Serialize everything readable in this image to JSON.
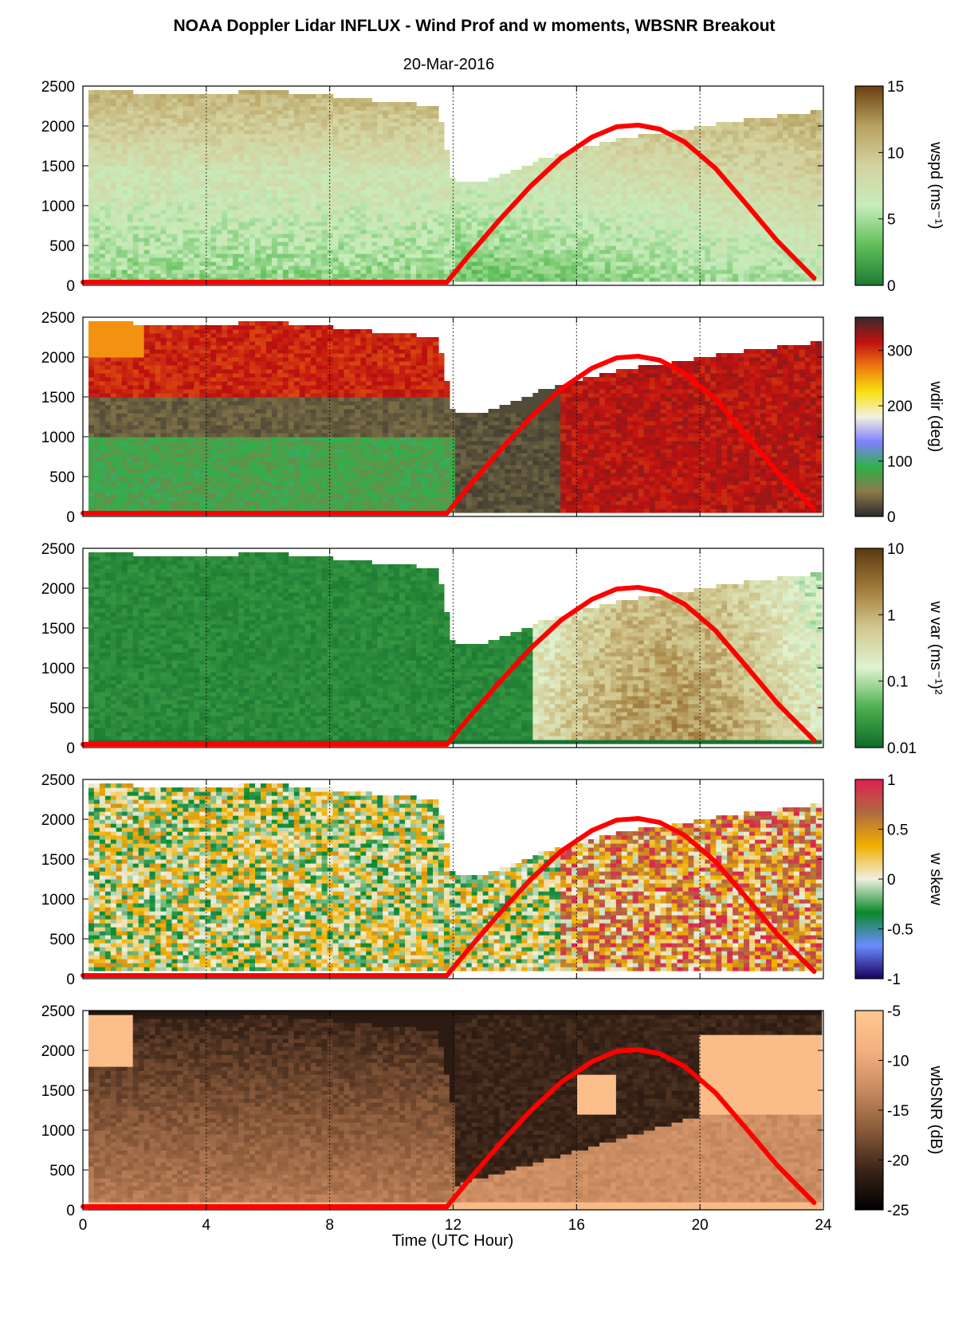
{
  "figure": {
    "title": "NOAA Doppler Lidar INFLUX - Wind Prof and w moments, WBSNR Breakout",
    "subtitle": "20-Mar-2016",
    "xlabel": "Time (UTC Hour)"
  },
  "chart_data": [
    {
      "type": "heatmap",
      "variable": "wspd",
      "colorbar_label": "wspd (ms⁻¹)",
      "colorbar_ticks": [
        "0",
        "5",
        "10",
        "15"
      ],
      "colorbar_range": [
        0,
        15
      ],
      "colorbar_colors": [
        "#1f7a34",
        "#5fbf58",
        "#c8ecbc",
        "#d4d2a0",
        "#b8a260",
        "#6b3f10"
      ],
      "x": {
        "label": "",
        "range": [
          0,
          24
        ],
        "ticks": [
          0,
          4,
          8,
          12,
          16,
          20,
          24
        ]
      },
      "y": {
        "range": [
          0,
          2500
        ],
        "ticks": [
          "0",
          "500",
          "1000",
          "1500",
          "2000",
          "2500"
        ]
      },
      "gridlines_x": [
        4,
        8,
        12,
        16,
        20
      ]
    },
    {
      "type": "heatmap",
      "variable": "wdir",
      "colorbar_label": "wdir (deg)",
      "colorbar_ticks": [
        "0",
        "100",
        "200",
        "300"
      ],
      "colorbar_range": [
        0,
        360
      ],
      "colorbar_colors": [
        "#2b2b2b",
        "#8a7a4a",
        "#2fb04a",
        "#8080ff",
        "#f2f2e0",
        "#f8e010",
        "#f07a10",
        "#c01010",
        "#3a2a2a"
      ],
      "x": {
        "label": "",
        "range": [
          0,
          24
        ],
        "ticks": [
          0,
          4,
          8,
          12,
          16,
          20,
          24
        ]
      },
      "y": {
        "range": [
          0,
          2500
        ],
        "ticks": [
          "0",
          "500",
          "1000",
          "1500",
          "2000",
          "2500"
        ]
      },
      "gridlines_x": [
        4,
        8,
        12,
        16,
        20
      ]
    },
    {
      "type": "heatmap",
      "variable": "w var",
      "colorbar_label": "w var (ms⁻¹)²",
      "colorbar_ticks": [
        "0.01",
        "0.1",
        "1",
        "10"
      ],
      "colorbar_scale": "log",
      "colorbar_colors": [
        "#0f6b2a",
        "#4caf50",
        "#dff3d0",
        "#d2c890",
        "#a07a3a",
        "#5a3a10"
      ],
      "x": {
        "label": "",
        "range": [
          0,
          24
        ],
        "ticks": [
          0,
          4,
          8,
          12,
          16,
          20,
          24
        ]
      },
      "y": {
        "range": [
          0,
          2500
        ],
        "ticks": [
          "0",
          "500",
          "1000",
          "1500",
          "2000",
          "2500"
        ]
      },
      "gridlines_x": [
        4,
        8,
        12,
        16,
        20
      ]
    },
    {
      "type": "heatmap",
      "variable": "w skew",
      "colorbar_label": "w skew",
      "colorbar_ticks": [
        "-1",
        "-0.5",
        "0",
        "0.5",
        "1"
      ],
      "colorbar_range": [
        -1,
        1
      ],
      "colorbar_colors": [
        "#1a0060",
        "#6a8cff",
        "#0a8a2a",
        "#f0f0e0",
        "#f0b000",
        "#b06a40",
        "#e02050"
      ],
      "x": {
        "label": "",
        "range": [
          0,
          24
        ],
        "ticks": [
          0,
          4,
          8,
          12,
          16,
          20,
          24
        ]
      },
      "y": {
        "range": [
          0,
          2500
        ],
        "ticks": [
          "0",
          "500",
          "1000",
          "1500",
          "2000",
          "2500"
        ]
      },
      "gridlines_x": [
        4,
        8,
        12,
        16,
        20
      ]
    },
    {
      "type": "heatmap",
      "variable": "wbSNR",
      "colorbar_label": "wbSNR (dB)",
      "colorbar_ticks": [
        "-25",
        "-20",
        "-15",
        "-10",
        "-5"
      ],
      "colorbar_range": [
        -25,
        -5
      ],
      "colorbar_colors": [
        "#000000",
        "#3a2418",
        "#8a5a3a",
        "#c88a60",
        "#f4b080",
        "#ffc890"
      ],
      "x": {
        "label": "Time (UTC Hour)",
        "range": [
          0,
          24
        ],
        "ticks": [
          0,
          4,
          8,
          12,
          16,
          20,
          24
        ]
      },
      "y": {
        "range": [
          0,
          2500
        ],
        "ticks": [
          "0",
          "500",
          "1000",
          "1500",
          "2000",
          "2500"
        ]
      },
      "gridlines_x": [
        4,
        8,
        12,
        16,
        20
      ]
    }
  ],
  "overlay_curve": {
    "color": "#ff0000",
    "description": "solar elevation overlay",
    "x": [
      0,
      11.8,
      12.5,
      13.5,
      14.5,
      15.5,
      16.5,
      17.3,
      18.0,
      18.7,
      19.5,
      20.5,
      21.5,
      22.5,
      23.7
    ],
    "y": [
      40,
      40,
      370,
      820,
      1240,
      1600,
      1860,
      1990,
      2010,
      1960,
      1800,
      1470,
      1020,
      560,
      90
    ]
  },
  "x_tick_labels": [
    "0",
    "4",
    "8",
    "12",
    "16",
    "20",
    "24"
  ]
}
